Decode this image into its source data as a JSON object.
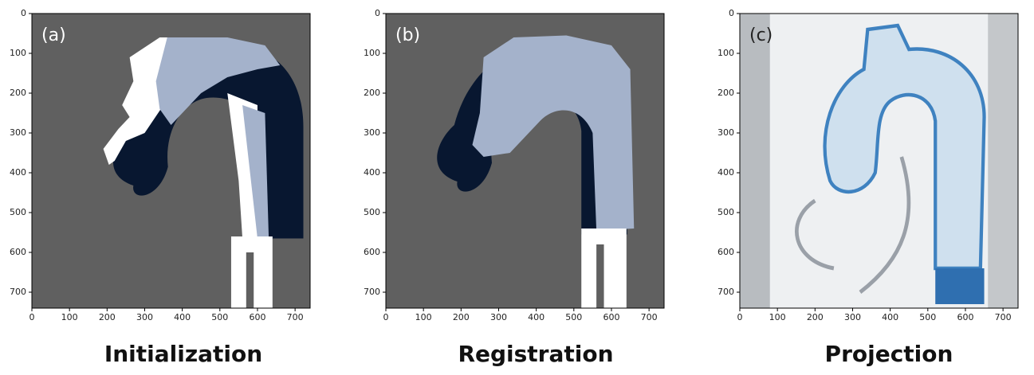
{
  "chart_data": [
    {
      "type": "image",
      "annotation": "(a)",
      "title": "Initialization",
      "xlim": [
        0,
        740
      ],
      "ylim": [
        740,
        0
      ],
      "xticks": [
        0,
        100,
        200,
        300,
        400,
        500,
        600,
        700
      ],
      "yticks": [
        0,
        100,
        200,
        300,
        400,
        500,
        600,
        700
      ]
    },
    {
      "type": "image",
      "annotation": "(b)",
      "title": "Registration",
      "xlim": [
        0,
        740
      ],
      "ylim": [
        740,
        0
      ],
      "xticks": [
        0,
        100,
        200,
        300,
        400,
        500,
        600,
        700
      ],
      "yticks": [
        0,
        100,
        200,
        300,
        400,
        500,
        600,
        700
      ]
    },
    {
      "type": "image",
      "annotation": "(c)",
      "title": "Projection",
      "xlim": [
        0,
        740
      ],
      "ylim": [
        740,
        0
      ],
      "xticks": [
        0,
        100,
        200,
        300,
        400,
        500,
        600,
        700
      ],
      "yticks": [
        0,
        100,
        200,
        300,
        400,
        500,
        600,
        700
      ]
    }
  ]
}
